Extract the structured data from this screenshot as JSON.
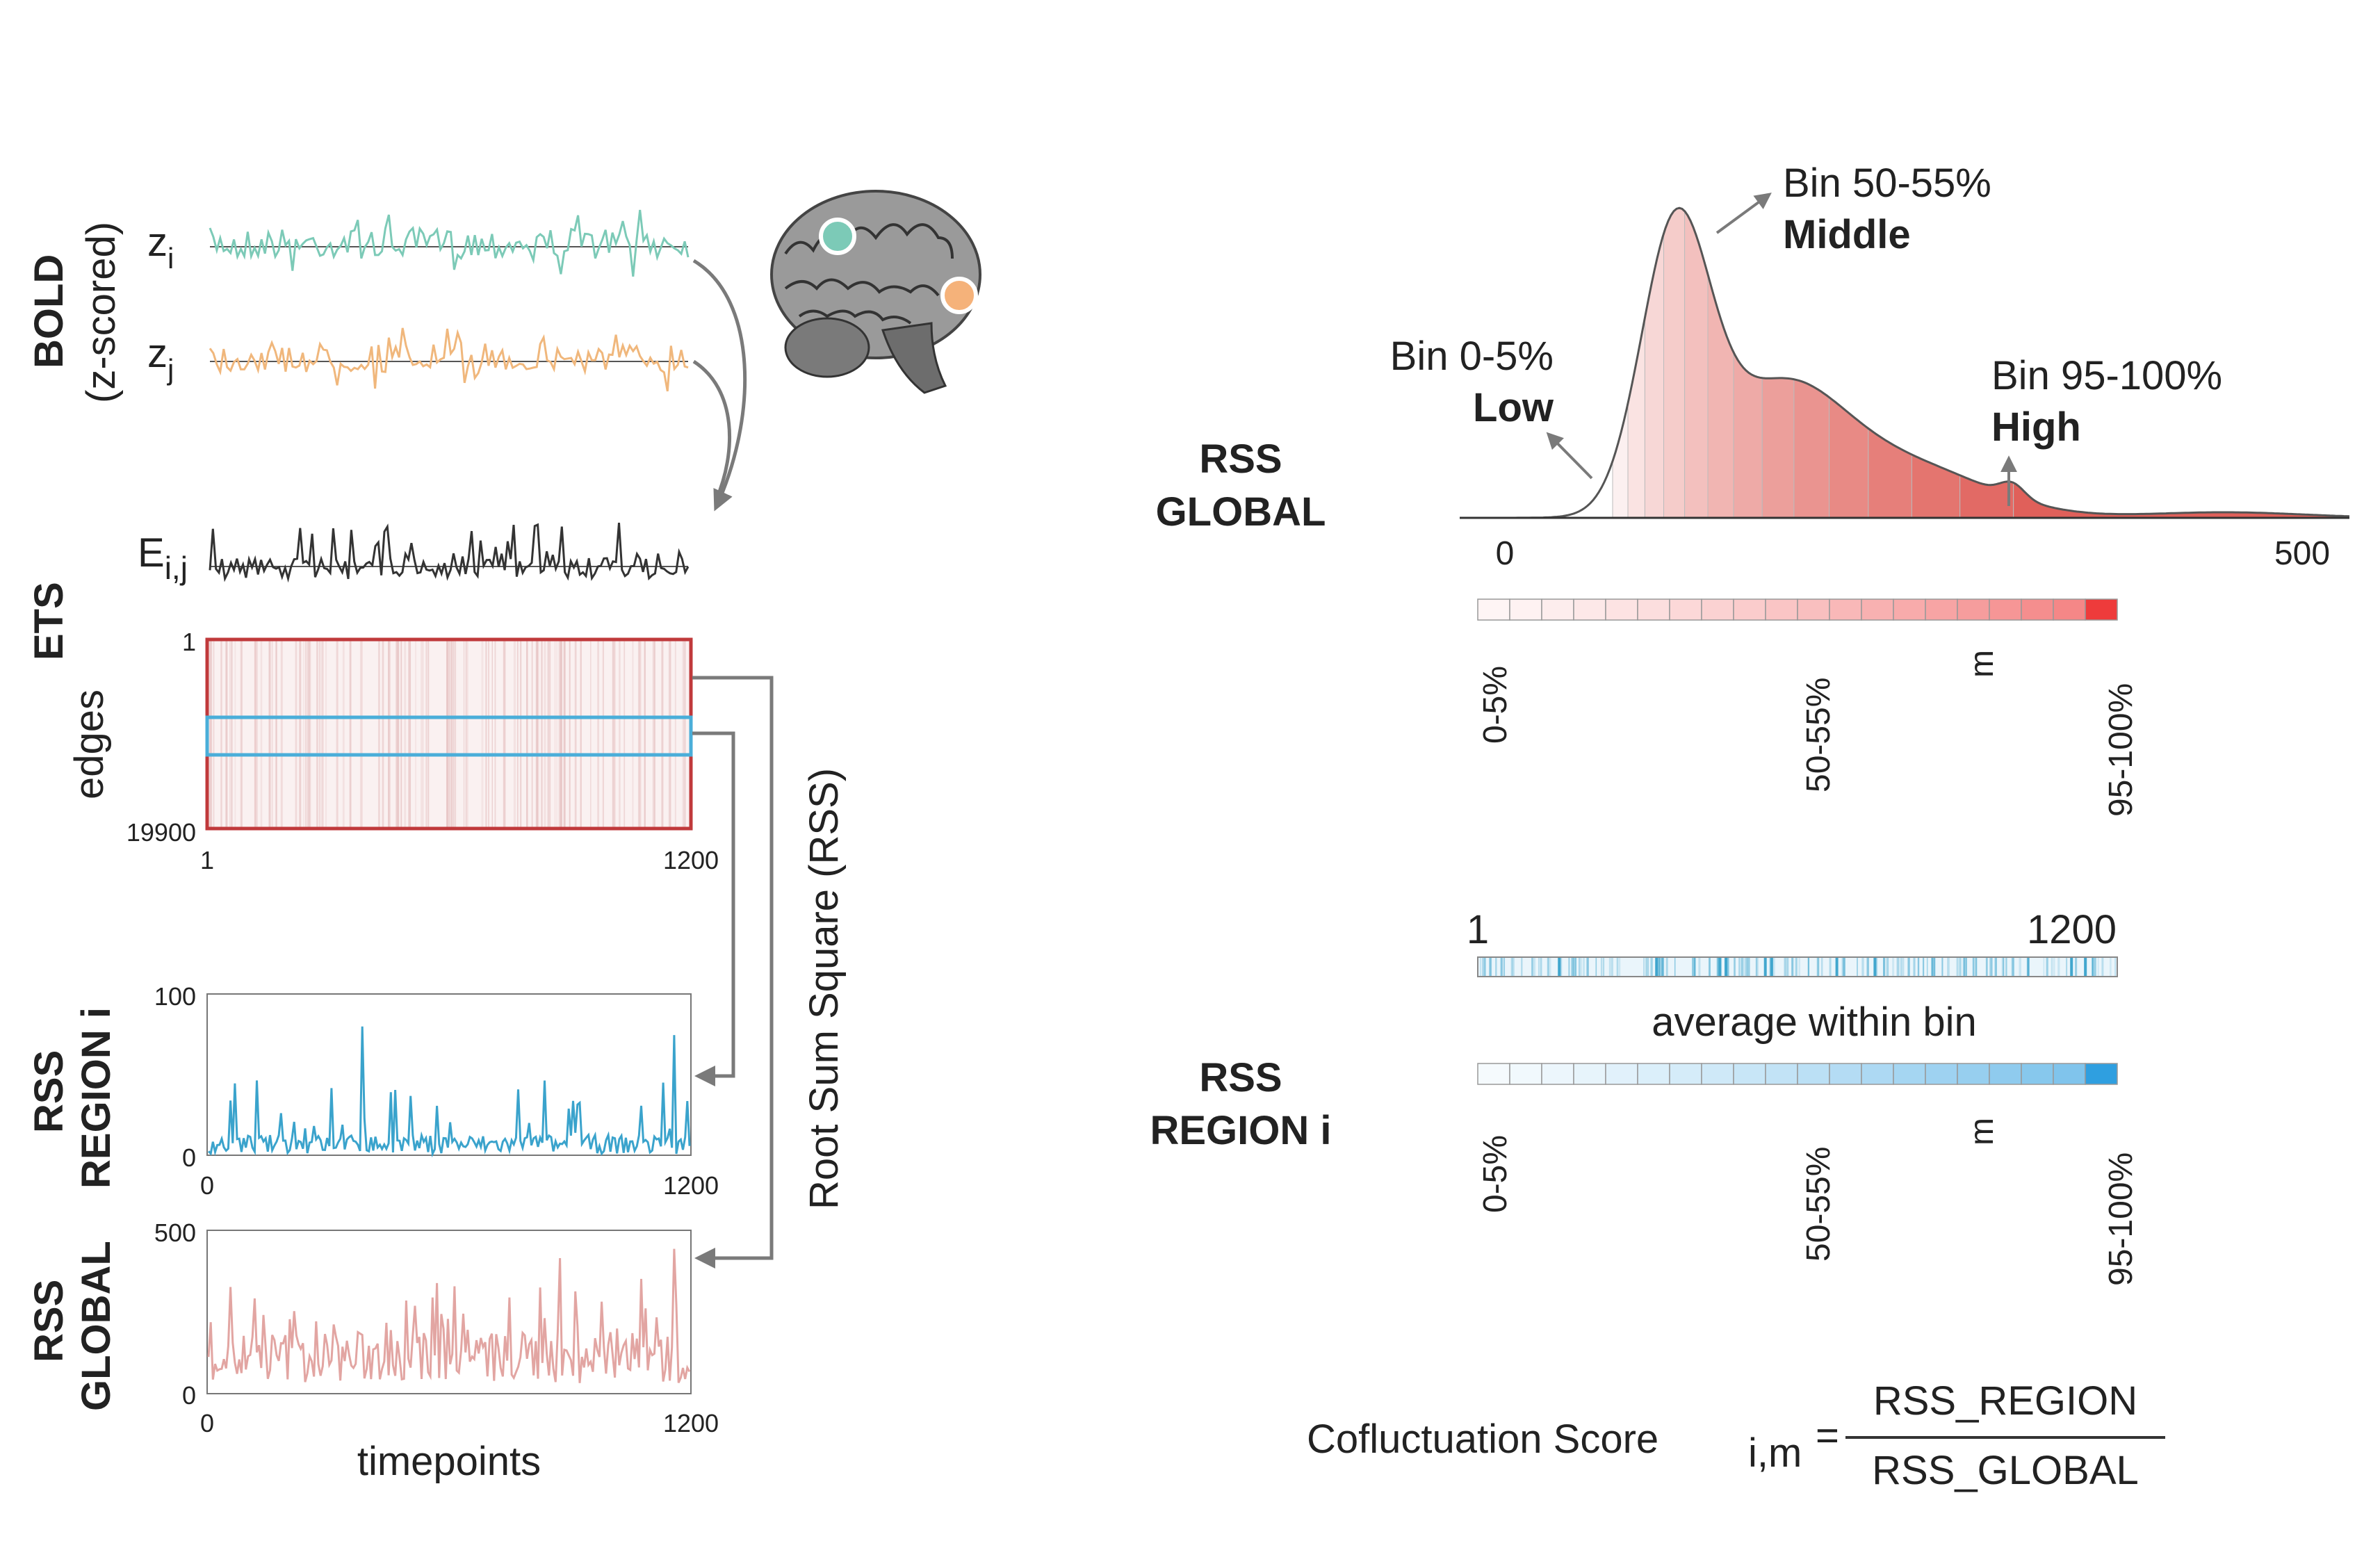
{
  "left_panel": {
    "bold": {
      "title": "BOLD",
      "subtitle": "(z-scored)",
      "zi_label": "z",
      "zi_sub": "i",
      "zj_label": "z",
      "zj_sub": "j",
      "zi_color": "#7ccab7",
      "zj_color": "#f0b77c"
    },
    "ets": {
      "title": "ETS",
      "e_label": "E",
      "e_sub": "i,j",
      "edges_label": "edges",
      "edge_tick_top": "1",
      "edge_tick_bottom": "19900",
      "time_tick_start": "1",
      "time_tick_end": "1200",
      "frame_color": "#c0393b",
      "highlight_color": "#4aaed9"
    },
    "rss_region": {
      "title_line1": "RSS",
      "title_line2": "REGION i",
      "y_top": "100",
      "y_bottom": "0",
      "x_start": "0",
      "x_end": "1200",
      "color": "#3aa3cc"
    },
    "rss_global": {
      "title_line1": "RSS",
      "title_line2": "GLOBAL",
      "y_top": "500",
      "y_bottom": "0",
      "x_start": "0",
      "x_end": "1200",
      "x_label": "timepoints",
      "color": "#e2a5a2"
    },
    "rss_vertical_label": "Root Sum Square (RSS)",
    "brain": {
      "node_i_color": "#7ccab7",
      "node_j_color": "#f5b27a"
    }
  },
  "right_panel": {
    "global_title_line1": "RSS",
    "global_title_line2": "GLOBAL",
    "density": {
      "x_start": "0",
      "x_end": "500",
      "low_bin": "Bin 0-5%",
      "low_word": "Low",
      "mid_bin": "Bin 50-55%",
      "mid_word": "Middle",
      "high_bin": "Bin 95-100%",
      "high_word": "High",
      "color_low": "#ffffff",
      "color_high": "#e0605a"
    },
    "global_bins": {
      "count": 20,
      "labels": [
        "0-5%",
        "50-55%",
        "m",
        "95-100%"
      ],
      "color_low": "#ffffff",
      "color_high": "#ee3b3b"
    },
    "region_strip": {
      "start": "1",
      "end": "1200",
      "caption": "average within bin",
      "color": "#3aa3cc"
    },
    "region_title_line1": "RSS",
    "region_title_line2": "REGION i",
    "region_bins": {
      "count": 20,
      "labels": [
        "0-5%",
        "50-55%",
        "m",
        "95-100%"
      ],
      "color_low": "#ffffff",
      "color_high": "#2f9fe0"
    },
    "formula": {
      "lhs": "Cofluctuation Score",
      "subscript": "i,m",
      "equals": "=",
      "numerator": "RSS_REGION",
      "denominator": "RSS_GLOBAL"
    }
  }
}
